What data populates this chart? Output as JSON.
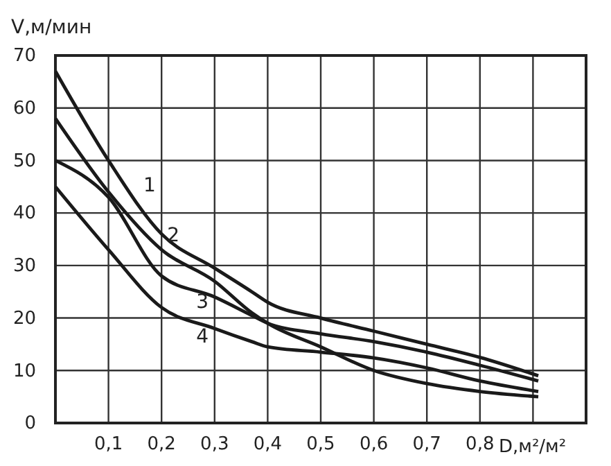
{
  "chart_data": {
    "type": "line",
    "ylabel": "V,м/мин",
    "xlabel": "D,м²/м²",
    "xlim": [
      0,
      1
    ],
    "ylim": [
      0,
      70
    ],
    "xticks": [
      {
        "value": 0.1,
        "label": "0,1"
      },
      {
        "value": 0.2,
        "label": "0,2"
      },
      {
        "value": 0.3,
        "label": "0,3"
      },
      {
        "value": 0.4,
        "label": "0,4"
      },
      {
        "value": 0.5,
        "label": "0,5"
      },
      {
        "value": 0.6,
        "label": "0,6"
      },
      {
        "value": 0.7,
        "label": "0,7"
      },
      {
        "value": 0.8,
        "label": "0,8"
      },
      {
        "value": 0.9,
        "label": null
      }
    ],
    "yticks": [
      0,
      10,
      20,
      30,
      40,
      50,
      60,
      70
    ],
    "grid": true,
    "color": "#1a1a1a",
    "x": [
      0,
      0.1,
      0.2,
      0.3,
      0.37,
      0.4,
      0.5,
      0.6,
      0.7,
      0.8,
      0.91
    ],
    "series": [
      {
        "name": "1",
        "values": [
          67,
          50,
          36,
          29.5,
          25,
          23,
          20,
          17.5,
          15,
          12.5,
          9
        ]
      },
      {
        "name": "2",
        "values": [
          58,
          44,
          33,
          27,
          21,
          19,
          14.5,
          10,
          7.5,
          6,
          5
        ]
      },
      {
        "name": "3",
        "values": [
          50,
          43,
          28,
          24,
          20.5,
          19,
          17,
          15.5,
          13.5,
          11,
          8
        ]
      },
      {
        "name": "4",
        "values": [
          45,
          33,
          22,
          18,
          15.5,
          14.5,
          13.5,
          12.4,
          10.5,
          8,
          6
        ]
      }
    ]
  }
}
